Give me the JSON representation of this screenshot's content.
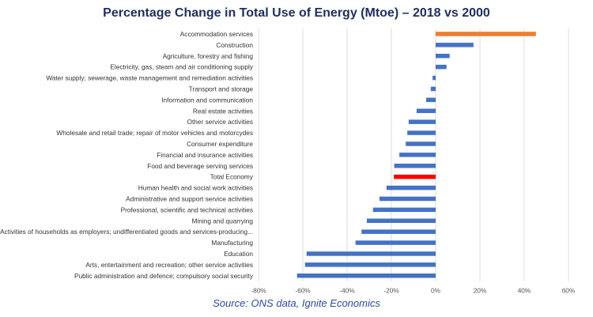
{
  "chart_data": {
    "type": "bar",
    "orientation": "horizontal",
    "title": "Percentage Change in Total Use of Energy (Mtoe) – 2018 vs 2000",
    "xlabel": "",
    "ylabel": "",
    "xlim": [
      -80,
      60
    ],
    "xticks": [
      "-80%",
      "-60%",
      "-40%",
      "-20%",
      "0%",
      "20%",
      "40%",
      "60%"
    ],
    "grid": true,
    "legend": "none",
    "categories": [
      "Accommodation services",
      "Construction",
      "Agriculture, forestry and fishing",
      "Electricity, gas, steam and air conditioning supply",
      "Water supply; sewerage, waste management and remediation activities",
      "Transport and storage",
      "Information and communication",
      "Real estate activities",
      "Other service activities",
      "Wholesale and retail trade; repair of motor vehicles and motorcydes",
      "Consumer expenditure",
      "Financial and insurance activities",
      "Food and beverage serving services",
      "Total Economy",
      "Human health and social work activities",
      "Administrative and support service activities",
      "Professional, scientific and technical activities",
      "Mining and quarrying",
      "Activities of households as employers; undifferentiated goods and services-producing...",
      "Manufacturing",
      "Education",
      "Arts, entertainment and recreation; other service activities",
      "Public administration and defence; compulsory social security"
    ],
    "values": [
      45.3,
      17.1,
      6.3,
      4.9,
      -1.4,
      -2.2,
      -4.3,
      -8.6,
      -12.2,
      -12.8,
      -13.5,
      -16.4,
      -18.7,
      -18.9,
      -22.2,
      -25.4,
      -28.3,
      -31.1,
      -33.5,
      -36.2,
      -58.3,
      -59.0,
      -62.6
    ],
    "colors": {
      "default": "#4472c4",
      "Accommodation services": "#ed7d31",
      "Total Economy": "#ff0000"
    }
  },
  "source": "Source: ONS data, Ignite Economics"
}
